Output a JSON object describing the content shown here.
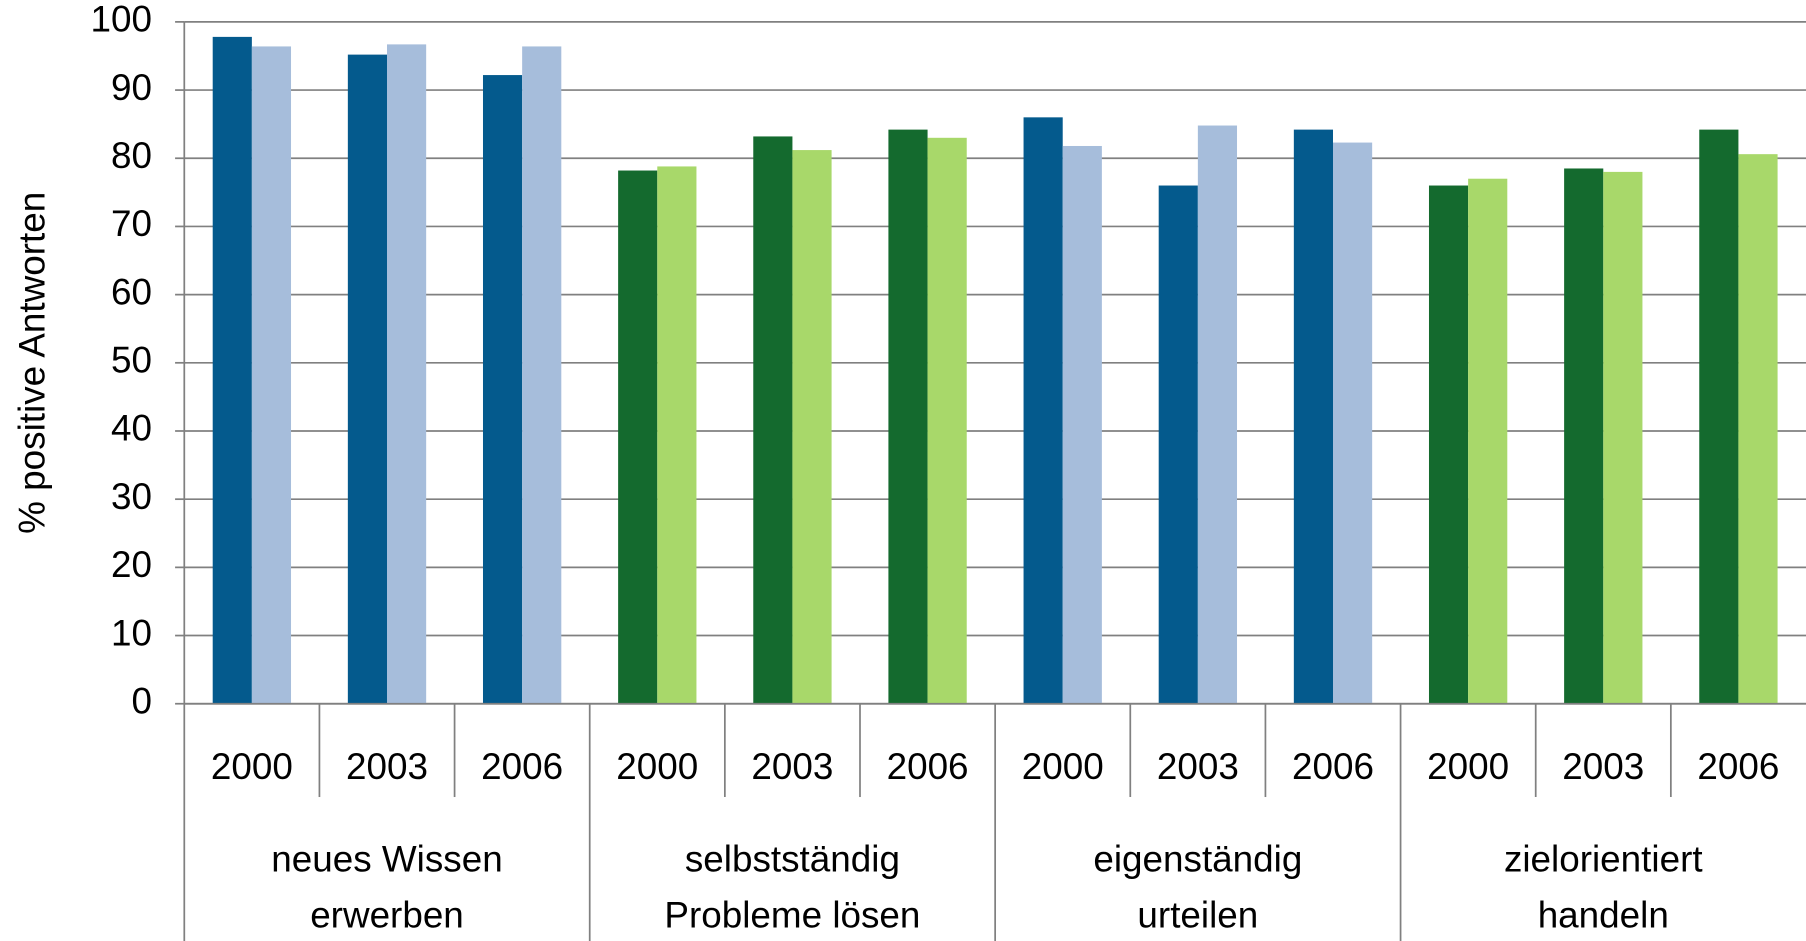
{
  "chart_data": {
    "type": "bar",
    "y_label": "% positive Antworten",
    "categories": [
      "2000",
      "2003",
      "2006",
      "2000",
      "2003",
      "2006",
      "2000",
      "2003",
      "2006",
      "2000",
      "2003",
      "2006"
    ],
    "groups": [
      [
        "neues Wissen",
        "erwerben"
      ],
      [
        "selbstständig",
        "Probleme lösen"
      ],
      [
        "eigenständig",
        "urteilen"
      ],
      [
        "zielorientiert",
        "handeln"
      ]
    ],
    "series": [
      {
        "colors": [
          "#045a8d",
          "#146a2e",
          "#045a8d",
          "#146a2e"
        ],
        "values": [
          97.8,
          95.2,
          92.2,
          78.2,
          83.2,
          84.2,
          86.0,
          76.0,
          84.2,
          76.0,
          78.5,
          84.2
        ]
      },
      {
        "colors": [
          "#a6bddb",
          "#a8d86a",
          "#a6bddb",
          "#a8d86a"
        ],
        "values": [
          96.4,
          96.7,
          96.4,
          78.8,
          81.2,
          83.0,
          81.8,
          84.8,
          82.3,
          77.0,
          78.0,
          80.6
        ]
      }
    ],
    "ylim": [
      0,
      100
    ],
    "yticks": [
      0,
      10,
      20,
      30,
      40,
      50,
      60,
      70,
      80,
      90,
      100
    ],
    "grid": true
  }
}
